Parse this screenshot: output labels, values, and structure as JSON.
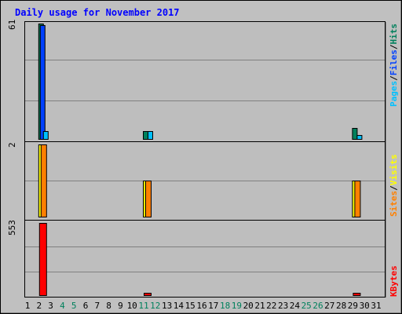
{
  "colors": {
    "background": "#c0c0c0",
    "plot_background": "#bebebe",
    "grid": "#808080",
    "title": "#0000ff",
    "hits": "#00805c",
    "files": "#0040ff",
    "pages": "#00c0ff",
    "visits": "#ffff00",
    "sites": "#ff8000",
    "kbytes": "#ff0000",
    "weekend_label": "#00805c",
    "weekday_label": "#000000"
  },
  "chart_data": [
    {
      "type": "bar",
      "title": "Daily usage for November 2017",
      "panel": "hits-files-pages",
      "axis_max_label": "61",
      "ylim": [
        0,
        61
      ],
      "categories": [
        "1",
        "2",
        "3",
        "4",
        "5",
        "6",
        "7",
        "8",
        "9",
        "10",
        "11",
        "12",
        "13",
        "14",
        "15",
        "16",
        "17",
        "18",
        "19",
        "20",
        "21",
        "22",
        "23",
        "24",
        "25",
        "26",
        "27",
        "28",
        "29",
        "30",
        "31"
      ],
      "weekend_days": [
        4,
        5,
        11,
        12,
        18,
        19,
        25,
        26
      ],
      "legend": [
        "Pages",
        "/",
        "Files",
        "/",
        "Hits"
      ],
      "series": [
        {
          "name": "Hits",
          "color_key": "hits",
          "values": [
            0,
            61,
            0,
            0,
            0,
            0,
            0,
            0,
            0,
            0,
            4,
            0,
            0,
            0,
            0,
            0,
            0,
            0,
            0,
            0,
            0,
            0,
            0,
            0,
            0,
            0,
            0,
            0,
            6,
            0,
            0
          ]
        },
        {
          "name": "Files",
          "color_key": "files",
          "values": [
            0,
            60,
            0,
            0,
            0,
            0,
            0,
            0,
            0,
            0,
            0,
            0,
            0,
            0,
            0,
            0,
            0,
            0,
            0,
            0,
            0,
            0,
            0,
            0,
            0,
            0,
            0,
            0,
            0,
            0,
            0
          ]
        },
        {
          "name": "Pages",
          "color_key": "pages",
          "values": [
            0,
            4,
            0,
            0,
            0,
            0,
            0,
            0,
            0,
            0,
            4,
            0,
            0,
            0,
            0,
            0,
            0,
            0,
            0,
            0,
            0,
            0,
            0,
            0,
            0,
            0,
            0,
            0,
            2,
            0,
            0
          ]
        }
      ]
    },
    {
      "type": "bar",
      "panel": "sites-visits",
      "axis_max_label": "2",
      "ylim": [
        0,
        2
      ],
      "legend": [
        "Sites",
        "/",
        "Visits"
      ],
      "series": [
        {
          "name": "Visits",
          "color_key": "visits",
          "values": [
            0,
            2,
            0,
            0,
            0,
            0,
            0,
            0,
            0,
            0,
            1,
            0,
            0,
            0,
            0,
            0,
            0,
            0,
            0,
            0,
            0,
            0,
            0,
            0,
            0,
            0,
            0,
            0,
            1,
            0,
            0
          ]
        },
        {
          "name": "Sites",
          "color_key": "sites",
          "values": [
            0,
            2,
            0,
            0,
            0,
            0,
            0,
            0,
            0,
            0,
            1,
            0,
            0,
            0,
            0,
            0,
            0,
            0,
            0,
            0,
            0,
            0,
            0,
            0,
            0,
            0,
            0,
            0,
            1,
            0,
            0
          ]
        }
      ]
    },
    {
      "type": "bar",
      "panel": "kbytes",
      "axis_max_label": "553",
      "ylim": [
        0,
        553
      ],
      "legend": [
        "KBytes"
      ],
      "series": [
        {
          "name": "KBytes",
          "color_key": "kbytes",
          "values": [
            0,
            553,
            0,
            0,
            0,
            0,
            0,
            0,
            0,
            0,
            12,
            0,
            0,
            0,
            0,
            0,
            0,
            0,
            0,
            0,
            0,
            0,
            0,
            0,
            0,
            0,
            0,
            0,
            12,
            0,
            0
          ]
        }
      ]
    }
  ]
}
